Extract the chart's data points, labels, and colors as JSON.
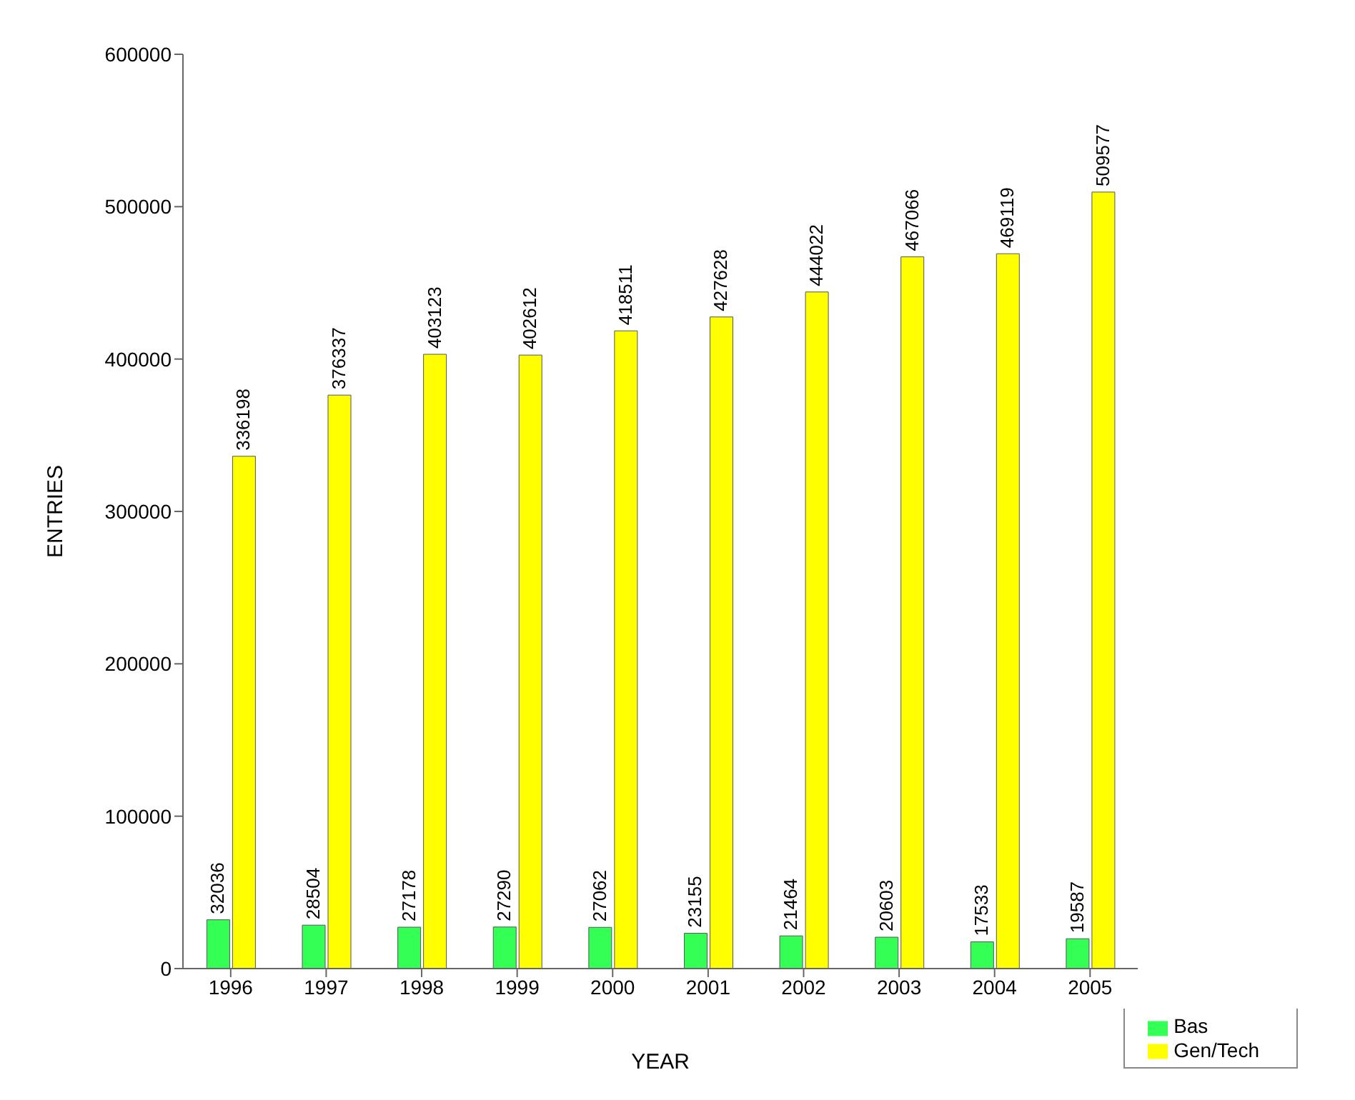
{
  "chart_data": {
    "type": "bar",
    "xlabel": "YEAR",
    "ylabel": "ENTRIES",
    "categories": [
      "1996",
      "1997",
      "1998",
      "1999",
      "2000",
      "2001",
      "2002",
      "2003",
      "2004",
      "2005"
    ],
    "series": [
      {
        "name": "Bas",
        "color": "#33ff55",
        "values": [
          32036,
          28504,
          27178,
          27290,
          27062,
          23155,
          21464,
          20603,
          17533,
          19587
        ]
      },
      {
        "name": "Gen/Tech",
        "color": "#ffff00",
        "values": [
          336198,
          376337,
          403123,
          402612,
          418511,
          427628,
          444022,
          467066,
          469119,
          509577
        ]
      }
    ],
    "ylim": [
      0,
      600000
    ],
    "yticks": [
      0,
      100000,
      200000,
      300000,
      400000,
      500000,
      600000
    ],
    "data_labels": true,
    "grid": false,
    "legend": "bottom right"
  }
}
